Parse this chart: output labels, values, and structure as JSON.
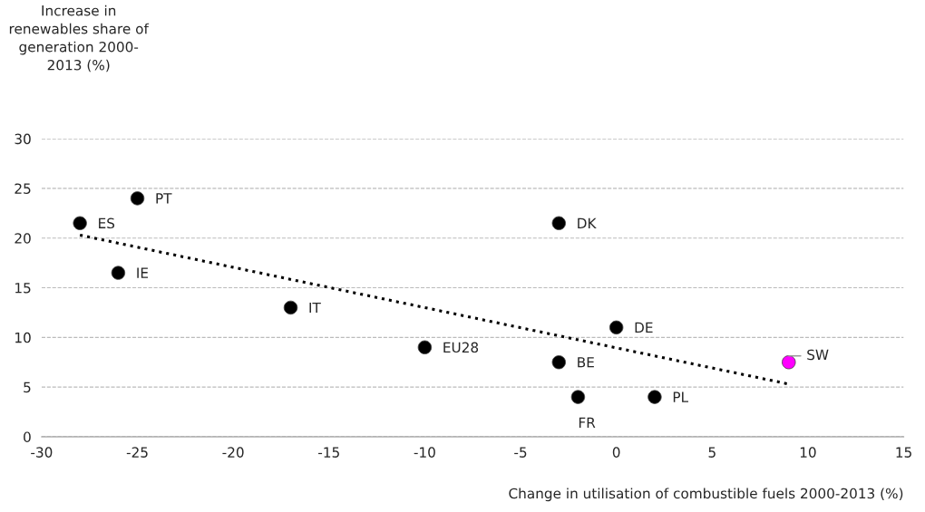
{
  "chart_data": {
    "type": "scatter",
    "xlabel": "Change in utilisation of combustible fuels 2000-2013 (%)",
    "ylabel": "Increase in\nrenewables share of\ngeneration 2000-\n2013 (%)",
    "xlim": [
      -30,
      15
    ],
    "xticks": [
      -30,
      -25,
      -20,
      -15,
      -10,
      -5,
      0,
      5,
      10,
      15
    ],
    "ylim": [
      0,
      30
    ],
    "yticks": [
      0,
      5,
      10,
      15,
      20,
      25,
      30
    ],
    "grid": "y",
    "marker": "circle",
    "series": [
      {
        "x": [
          -28,
          -25,
          -26,
          -17,
          -10,
          -3,
          -3,
          -2,
          0,
          2,
          9
        ],
        "values": [
          21.5,
          24,
          16.5,
          13,
          9,
          21.5,
          7.5,
          4,
          11,
          4,
          7.5
        ],
        "colors": [
          "#000000",
          "#000000",
          "#000000",
          "#000000",
          "#000000",
          "#000000",
          "#000000",
          "#000000",
          "#000000",
          "#000000",
          "#ff00ff"
        ]
      },
      {
        "type": "line",
        "x": [
          -28,
          9
        ],
        "values": [
          20.3,
          5.3
        ],
        "color": "#000000",
        "line_style": "dotted",
        "marker": "none"
      }
    ],
    "annotations": [
      {
        "text": "ES",
        "x": -28,
        "y": 21.5
      },
      {
        "text": "PT",
        "x": -25,
        "y": 24
      },
      {
        "text": "IE",
        "x": -26,
        "y": 16.5
      },
      {
        "text": "IT",
        "x": -17,
        "y": 13
      },
      {
        "text": "EU28",
        "x": -10,
        "y": 9
      },
      {
        "text": "DK",
        "x": -3,
        "y": 21.5
      },
      {
        "text": "BE",
        "x": -3,
        "y": 7.5
      },
      {
        "text": "FR",
        "x": -2,
        "y": 4
      },
      {
        "text": "DE",
        "x": 0,
        "y": 11
      },
      {
        "text": "PL",
        "x": 2,
        "y": 4
      },
      {
        "text": "SW",
        "x": 9,
        "y": 7.5
      }
    ]
  }
}
